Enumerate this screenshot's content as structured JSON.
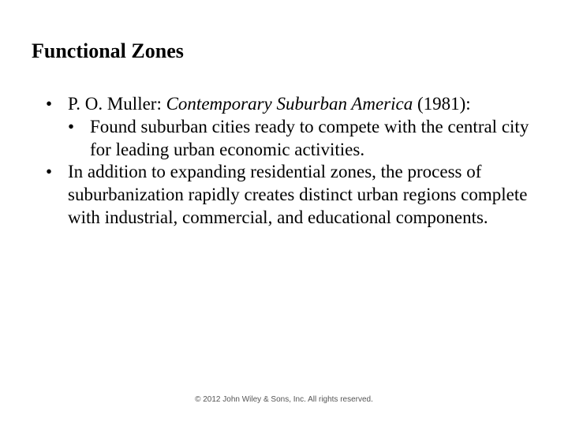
{
  "title": "Functional Zones",
  "bullets": {
    "item1_prefix": "P. O. Muller: ",
    "item1_italic": "Contemporary Suburban America",
    "item1_suffix": " (1981):",
    "sub1": "Found suburban cities ready to compete with the central city for leading urban economic activities.",
    "item2": "In addition to expanding residential zones, the process of suburbanization rapidly creates distinct urban regions complete with industrial, commercial, and educational components."
  },
  "footer": "© 2012 John Wiley & Sons, Inc. All rights reserved.",
  "glyph": "•",
  "style": {
    "title_fontsize": 26,
    "body_fontsize": 23,
    "footer_fontsize": 10,
    "background": "#ffffff",
    "text_color": "#000000",
    "footer_color": "#555555"
  }
}
